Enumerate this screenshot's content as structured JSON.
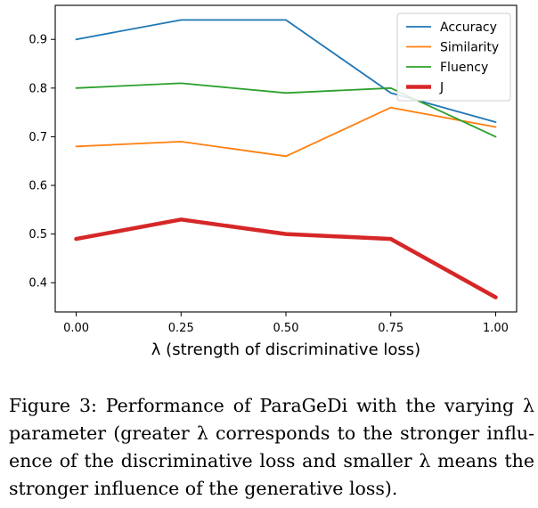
{
  "chart_data": {
    "type": "line",
    "title": "",
    "xlabel": "λ (strength of discriminative loss)",
    "ylabel": "",
    "x": [
      0.0,
      0.25,
      0.5,
      0.75,
      1.0
    ],
    "x_tick_labels": [
      "0.00",
      "0.25",
      "0.50",
      "0.75",
      "1.00"
    ],
    "y_ticks": [
      0.4,
      0.5,
      0.6,
      0.7,
      0.8,
      0.9
    ],
    "y_tick_labels": [
      "0.4",
      "0.5",
      "0.6",
      "0.7",
      "0.8",
      "0.9"
    ],
    "xlim": [
      -0.05,
      1.05
    ],
    "ylim": [
      0.34,
      0.97
    ],
    "grid": false,
    "legend": "top-right",
    "series": [
      {
        "name": "Accuracy",
        "color": "#1f77b4",
        "width": "normal",
        "values": [
          0.9,
          0.94,
          0.94,
          0.79,
          0.73
        ]
      },
      {
        "name": "Similarity",
        "color": "#ff7f0e",
        "width": "normal",
        "values": [
          0.68,
          0.69,
          0.66,
          0.76,
          0.72
        ]
      },
      {
        "name": "Fluency",
        "color": "#2ca02c",
        "width": "normal",
        "values": [
          0.8,
          0.81,
          0.79,
          0.8,
          0.7
        ]
      },
      {
        "name": "J",
        "color": "#d62728",
        "width": "thick",
        "values": [
          0.49,
          0.53,
          0.5,
          0.49,
          0.37
        ]
      }
    ]
  },
  "caption": "Figure 3: Performance of ParaGeDi with the varying λ parameter (greater λ corresponds to the stronger influ-ence of the discriminative loss and smaller λ means the stronger influence of the generative loss)."
}
